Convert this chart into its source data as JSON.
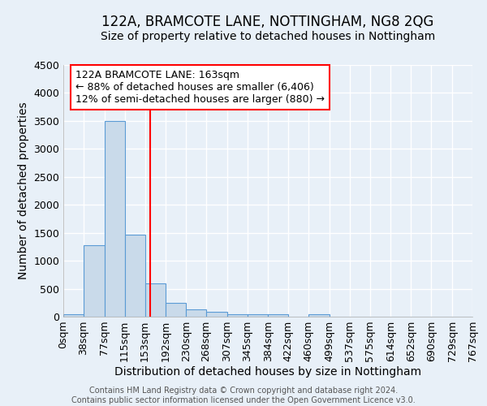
{
  "title": "122A, BRAMCOTE LANE, NOTTINGHAM, NG8 2QG",
  "subtitle": "Size of property relative to detached houses in Nottingham",
  "xlabel": "Distribution of detached houses by size in Nottingham",
  "ylabel": "Number of detached properties",
  "bin_edges": [
    0,
    38,
    77,
    115,
    153,
    192,
    230,
    268,
    307,
    345,
    384,
    422,
    460,
    499,
    537,
    575,
    614,
    652,
    690,
    729,
    767
  ],
  "bar_heights": [
    50,
    1280,
    3500,
    1470,
    590,
    250,
    130,
    80,
    50,
    40,
    40,
    0,
    50,
    0,
    0,
    0,
    0,
    0,
    0,
    0
  ],
  "bar_color": "#c9daea",
  "bar_edge_color": "#5b9bd5",
  "property_line_x": 163,
  "property_line_color": "red",
  "annotation_text": "122A BRAMCOTE LANE: 163sqm\n← 88% of detached houses are smaller (6,406)\n12% of semi-detached houses are larger (880) →",
  "annotation_box_color": "white",
  "annotation_box_edge_color": "red",
  "ylim": [
    0,
    4500
  ],
  "yticks": [
    0,
    500,
    1000,
    1500,
    2000,
    2500,
    3000,
    3500,
    4000,
    4500
  ],
  "background_color": "#e8f0f8",
  "grid_color": "white",
  "footer_line1": "Contains HM Land Registry data © Crown copyright and database right 2024.",
  "footer_line2": "Contains public sector information licensed under the Open Government Licence v3.0.",
  "title_fontsize": 12,
  "subtitle_fontsize": 10,
  "axis_label_fontsize": 10,
  "tick_label_fontsize": 9,
  "annotation_fontsize": 9,
  "footer_fontsize": 7
}
